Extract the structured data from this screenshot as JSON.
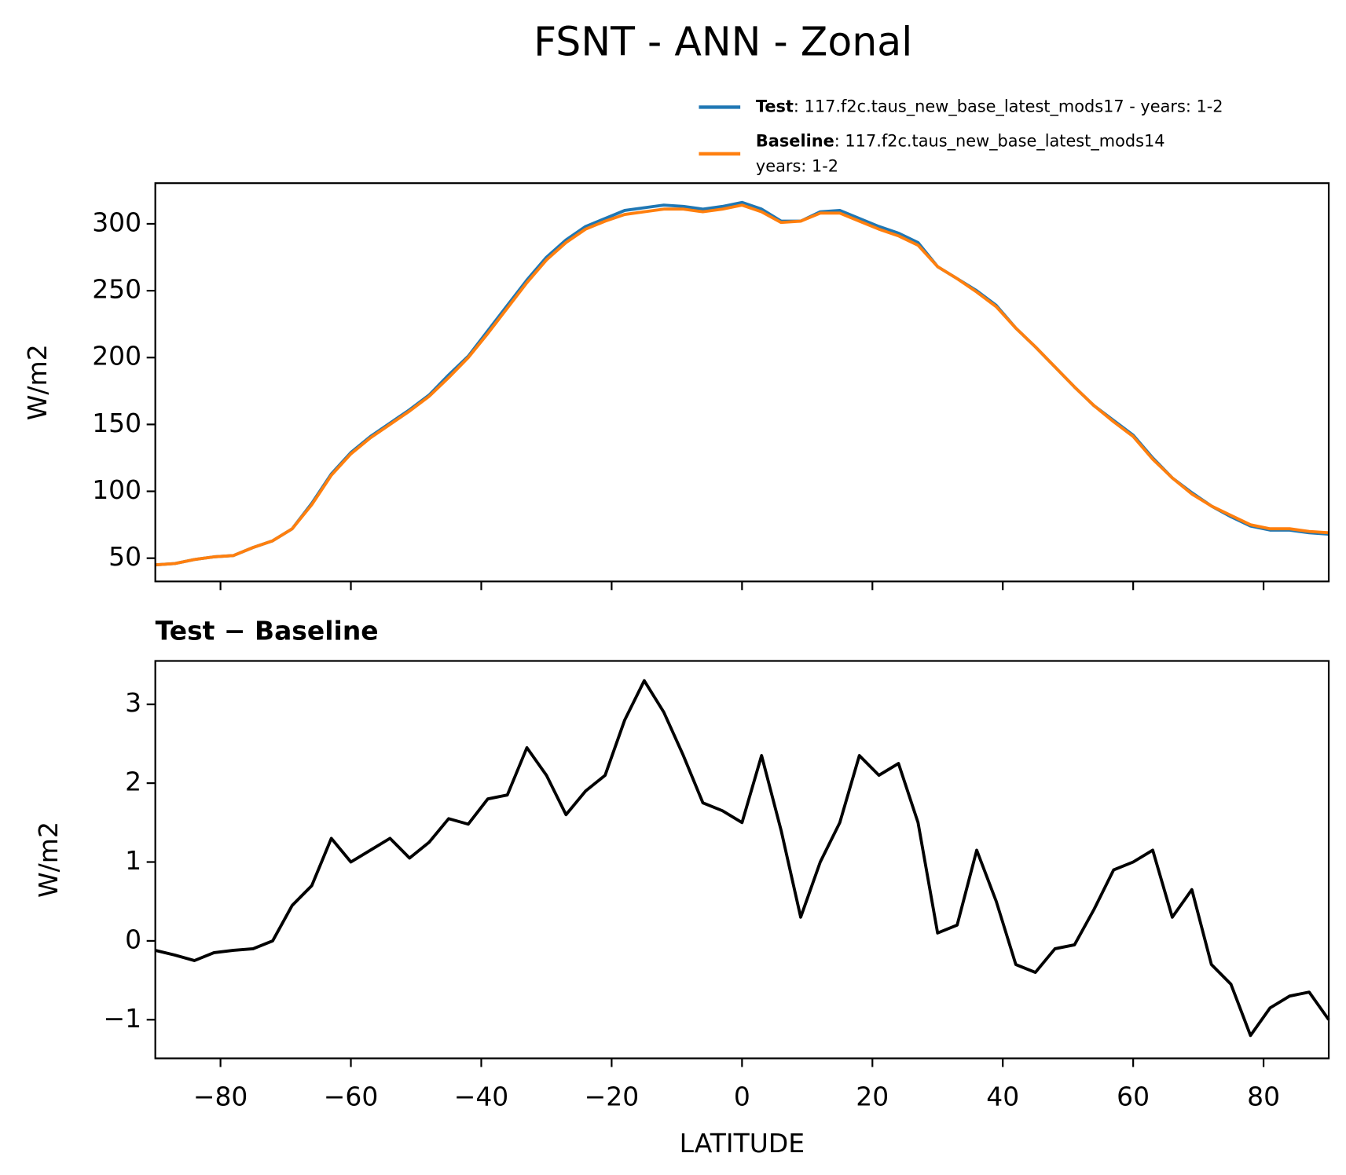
{
  "chart_data": [
    {
      "type": "line",
      "title": "FSNT - ANN - Zonal",
      "ylabel": "W/m2",
      "x": [
        -90,
        -87,
        -84,
        -81,
        -78,
        -75,
        -72,
        -69,
        -66,
        -63,
        -60,
        -57,
        -54,
        -51,
        -48,
        -45,
        -42,
        -39,
        -36,
        -33,
        -30,
        -27,
        -24,
        -21,
        -18,
        -15,
        -12,
        -9,
        -6,
        -3,
        0,
        3,
        6,
        9,
        12,
        15,
        18,
        21,
        24,
        27,
        30,
        33,
        36,
        39,
        42,
        45,
        48,
        51,
        54,
        57,
        60,
        63,
        66,
        69,
        72,
        75,
        78,
        81,
        84,
        87,
        90
      ],
      "series": [
        {
          "name": "Test",
          "description": [
            ": 117.f2c.taus_new_base_latest_mods17 - years: 1-2"
          ],
          "color": "#1f77b4",
          "values": [
            45,
            46,
            49,
            51,
            52,
            58,
            63,
            72,
            91,
            113,
            129,
            141,
            151,
            161,
            172,
            187,
            201,
            220,
            239,
            258,
            275,
            288,
            298,
            304,
            310,
            312,
            314,
            313,
            311,
            313,
            316,
            311,
            302,
            302,
            309,
            310,
            304,
            298,
            293,
            286,
            268,
            259,
            250,
            239,
            222,
            208,
            193,
            178,
            164,
            153,
            142,
            125,
            110,
            99,
            89,
            81,
            74,
            71,
            71,
            69,
            68
          ]
        },
        {
          "name": "Baseline",
          "description": [
            ": 117.f2c.taus_new_base_latest_mods14",
            "years: 1-2"
          ],
          "color": "#ff7f0e",
          "values": [
            45,
            46,
            49,
            51,
            52,
            58,
            63,
            72,
            90,
            112,
            128,
            140,
            150,
            160,
            171,
            185,
            200,
            218,
            237,
            256,
            273,
            286,
            296,
            302,
            307,
            309,
            311,
            311,
            309,
            311,
            314,
            309,
            301,
            302,
            308,
            308,
            302,
            296,
            291,
            284,
            268,
            259,
            249,
            238,
            222,
            208,
            193,
            178,
            164,
            152,
            141,
            124,
            110,
            98,
            89,
            82,
            75,
            72,
            72,
            70,
            69
          ]
        }
      ],
      "xlim": [
        -90,
        90
      ],
      "xticks": [
        -80,
        -60,
        -40,
        -20,
        0,
        20,
        40,
        60,
        80
      ],
      "ylim": [
        32.6,
        330.4
      ],
      "yticks": [
        50,
        100,
        150,
        200,
        250,
        300
      ]
    },
    {
      "type": "line",
      "title": "Test − Baseline",
      "ylabel": "W/m2",
      "xlabel": "LATITUDE",
      "x": [
        -90,
        -87,
        -84,
        -81,
        -78,
        -75,
        -72,
        -69,
        -66,
        -63,
        -60,
        -57,
        -54,
        -51,
        -48,
        -45,
        -42,
        -39,
        -36,
        -33,
        -30,
        -27,
        -24,
        -21,
        -18,
        -15,
        -12,
        -9,
        -6,
        -3,
        0,
        3,
        6,
        9,
        12,
        15,
        18,
        21,
        24,
        27,
        30,
        33,
        36,
        39,
        42,
        45,
        48,
        51,
        54,
        57,
        60,
        63,
        66,
        69,
        72,
        75,
        78,
        81,
        84,
        87,
        90
      ],
      "series": [
        {
          "color": "#000000",
          "values": [
            -0.12,
            -0.18,
            -0.25,
            -0.15,
            -0.12,
            -0.1,
            0.0,
            0.45,
            0.7,
            1.3,
            1.0,
            1.15,
            1.3,
            1.05,
            1.25,
            1.55,
            1.48,
            1.8,
            1.85,
            2.45,
            2.1,
            1.6,
            1.9,
            2.1,
            2.8,
            3.3,
            2.9,
            2.35,
            1.75,
            1.65,
            1.5,
            2.35,
            1.4,
            0.3,
            1.0,
            1.5,
            2.35,
            2.1,
            2.25,
            1.5,
            0.1,
            0.2,
            1.15,
            0.5,
            -0.3,
            -0.4,
            -0.1,
            -0.05,
            0.4,
            0.9,
            1.0,
            1.15,
            0.3,
            0.65,
            -0.3,
            -0.55,
            -1.2,
            -0.85,
            -0.7,
            -0.65,
            -1.0
          ]
        }
      ],
      "xlim": [
        -90,
        90
      ],
      "xticks": [
        {
          "value": -80,
          "label": "−80"
        },
        {
          "value": -60,
          "label": "−60"
        },
        {
          "value": -40,
          "label": "−40"
        },
        {
          "value": -20,
          "label": "−20"
        },
        0,
        20,
        40,
        60,
        80
      ],
      "ylim": [
        -1.49,
        3.55
      ],
      "yticks": [
        {
          "value": -1,
          "label": "−1"
        },
        0,
        1,
        2,
        3
      ]
    }
  ]
}
